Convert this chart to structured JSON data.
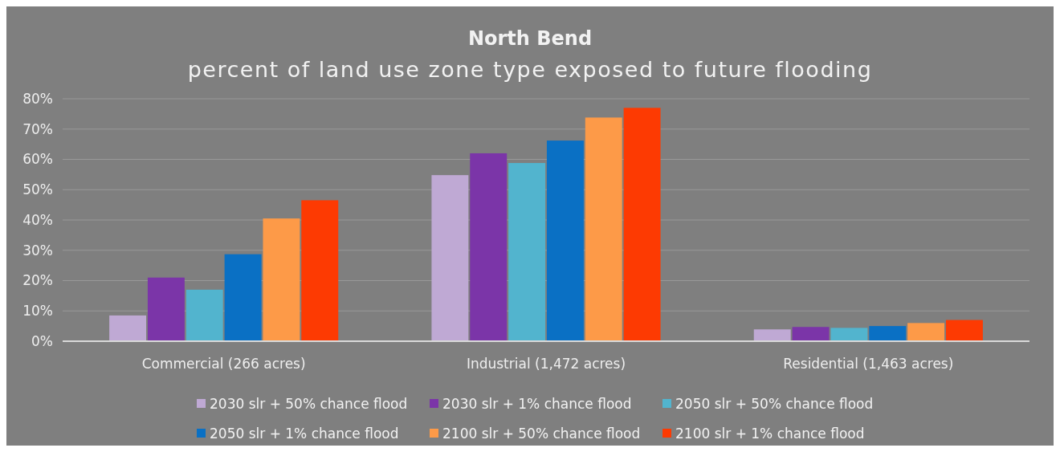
{
  "chart_data": {
    "type": "bar",
    "title": "North Bend",
    "subtitle": "percent of land use zone type exposed to future flooding",
    "categories": [
      "Commercial (266 acres)",
      "Industrial (1,472 acres)",
      "Residential (1,463 acres)"
    ],
    "series": [
      {
        "name": "2030 slr + 50% chance flood",
        "color": "#bfa9d4",
        "values": [
          8.5,
          54.8,
          3.9
        ]
      },
      {
        "name": "2030 slr + 1% chance flood",
        "color": "#7b35a8",
        "values": [
          21,
          62,
          4.7
        ]
      },
      {
        "name": "2050 slr + 50% chance flood",
        "color": "#52b4ce",
        "values": [
          17,
          58.8,
          4.4
        ]
      },
      {
        "name": "2050 slr + 1% chance flood",
        "color": "#0a70c4",
        "values": [
          28.7,
          66.2,
          5
        ]
      },
      {
        "name": "2100 slr + 50% chance flood",
        "color": "#fd9a48",
        "values": [
          40.5,
          73.8,
          6
        ]
      },
      {
        "name": "2100 slr + 1% chance flood",
        "color": "#fd3a02",
        "values": [
          46.5,
          77,
          7
        ]
      }
    ],
    "ylim": [
      0,
      80
    ],
    "yticks": [
      {
        "value": 0,
        "label": "0%"
      },
      {
        "value": 10,
        "label": "10%"
      },
      {
        "value": 20,
        "label": "20%"
      },
      {
        "value": 30,
        "label": "30%"
      },
      {
        "value": 40,
        "label": "40%"
      },
      {
        "value": 50,
        "label": "50%"
      },
      {
        "value": 60,
        "label": "60%"
      },
      {
        "value": 70,
        "label": "70%"
      },
      {
        "value": 80,
        "label": "80%"
      }
    ],
    "grid": "y",
    "legend": "bottom"
  }
}
